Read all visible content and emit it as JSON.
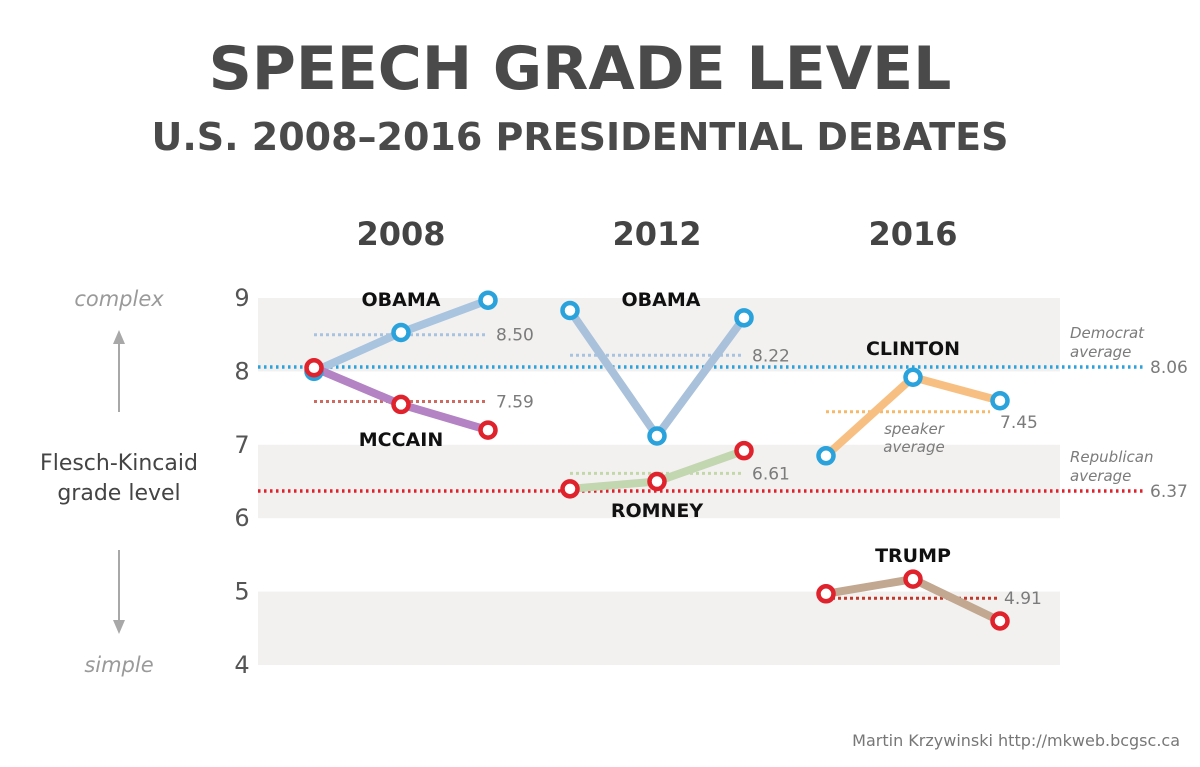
{
  "title": "SPEECH GRADE LEVEL",
  "subtitle": "U.S. 2008–2016 PRESIDENTIAL DEBATES",
  "credit": "Martin Krzywinski http://mkweb.bcgsc.ca",
  "chart_data": {
    "type": "line",
    "title": "SPEECH GRADE LEVEL",
    "subtitle": "U.S. 2008–2016 PRESIDENTIAL DEBATES",
    "ylabel_lines": [
      "Flesch-Kincaid",
      "grade level"
    ],
    "ylim": [
      4,
      9
    ],
    "yticks": [
      4,
      5,
      6,
      7,
      8,
      9
    ],
    "bands": [
      [
        4,
        5
      ],
      [
        6,
        7
      ],
      [
        8,
        9
      ]
    ],
    "direction_labels": {
      "top": "complex",
      "bottom": "simple"
    },
    "grid": false,
    "groups": [
      {
        "year": "2008",
        "series": [
          {
            "name": "OBAMA",
            "party": "D",
            "values": [
              8.0,
              8.53,
              8.97
            ],
            "average": 8.5,
            "average_label": "8.50"
          },
          {
            "name": "MCCAIN",
            "party": "R",
            "values": [
              8.05,
              7.55,
              7.2
            ],
            "average": 7.59,
            "average_label": "7.59"
          }
        ]
      },
      {
        "year": "2012",
        "series": [
          {
            "name": "OBAMA",
            "party": "D",
            "values": [
              8.83,
              7.12,
              8.73
            ],
            "average": 8.22,
            "average_label": "8.22"
          },
          {
            "name": "ROMNEY",
            "party": "R",
            "values": [
              6.4,
              6.5,
              6.92
            ],
            "average": 6.61,
            "average_label": "6.61"
          }
        ]
      },
      {
        "year": "2016",
        "series": [
          {
            "name": "CLINTON",
            "party": "D",
            "values": [
              6.85,
              7.92,
              7.6
            ],
            "average": 7.45,
            "average_label": "7.45"
          },
          {
            "name": "TRUMP",
            "party": "R",
            "values": [
              4.97,
              5.17,
              4.6
            ],
            "average": 4.91,
            "average_label": "4.91"
          }
        ]
      }
    ],
    "speaker_average_label": [
      "speaker",
      "average"
    ],
    "party_averages": [
      {
        "name": "Democrat average",
        "label_lines": [
          "Democrat",
          "average"
        ],
        "value": 8.06,
        "value_label": "8.06",
        "color": "#2aa2dc"
      },
      {
        "name": "Republican average",
        "label_lines": [
          "Republican",
          "average"
        ],
        "value": 6.37,
        "value_label": "6.37",
        "color": "#e0222c"
      }
    ],
    "colors": {
      "dem_marker": "#2aa2dc",
      "rep_marker": "#e0222c",
      "obama_2008_line": "#a8c4df",
      "mccain_line": "#b383c4",
      "obama_2012_line": "#a9c1da",
      "romney_line": "#c2d6b0",
      "clinton_line": "#f7c082",
      "trump_line": "#c2a890",
      "band": "#f2f1f0"
    }
  }
}
